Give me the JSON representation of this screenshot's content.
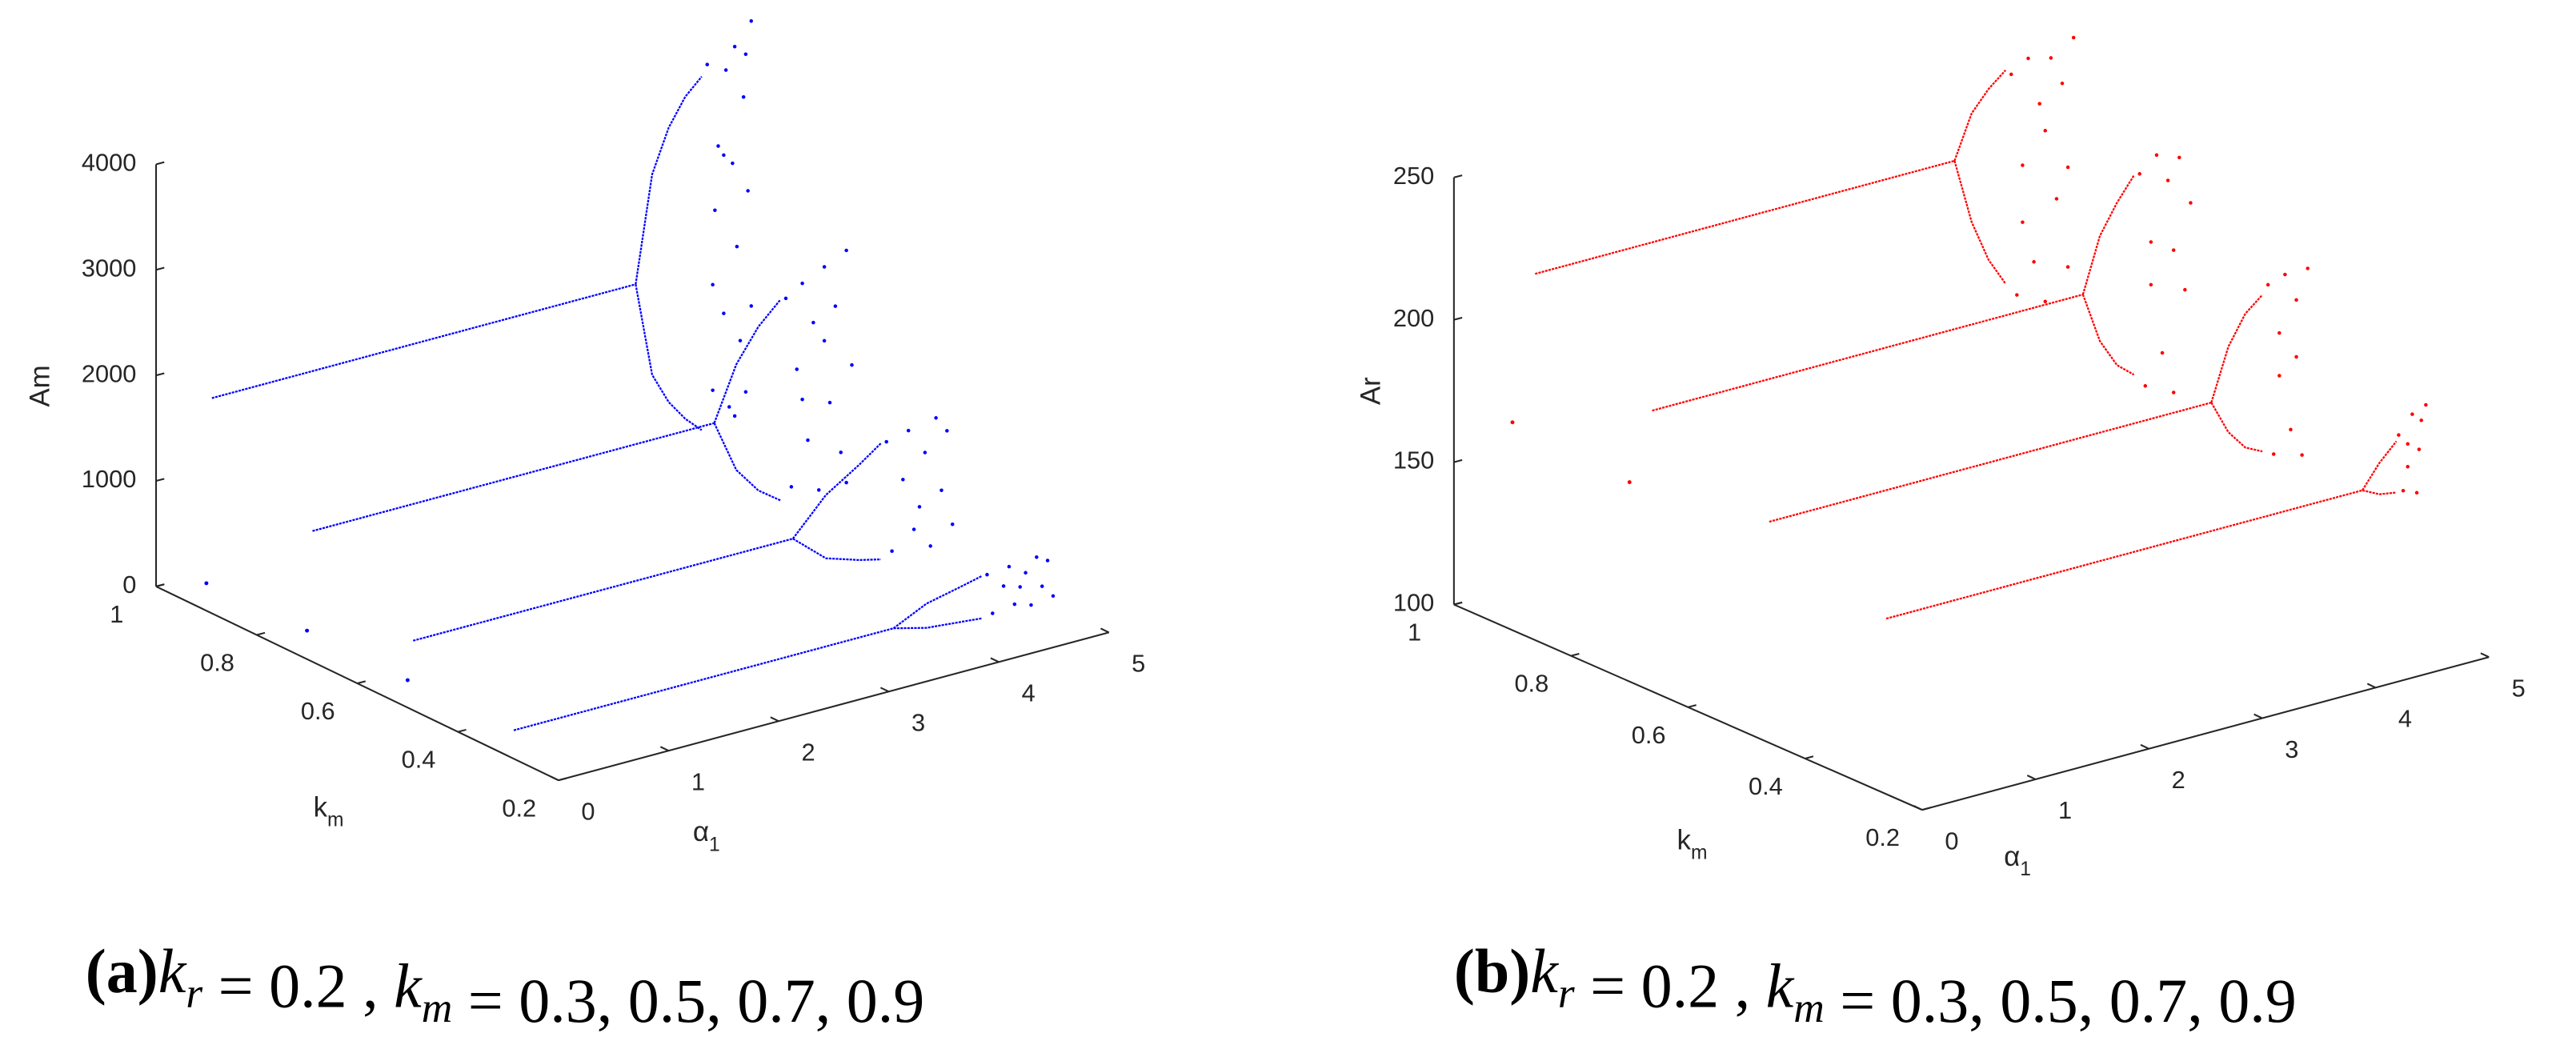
{
  "chart_data": [
    {
      "type": "scatter",
      "zlabel": "Am",
      "ylabel": {
        "text": "k",
        "sub": "m"
      },
      "xlabel": {
        "text": "α",
        "sub": "1"
      },
      "xlim": [
        0,
        5
      ],
      "xticks": [
        0,
        1,
        2,
        3,
        4,
        5
      ],
      "ylim": [
        0.2,
        1
      ],
      "yticks": [
        0.2,
        0.4,
        0.6,
        0.8,
        1
      ],
      "zlim": [
        0,
        4000
      ],
      "zticks": [
        0,
        1000,
        2000,
        3000,
        4000
      ],
      "caption": {
        "label": "(a)",
        "parts": [
          {
            "text": "k",
            "sub": "r"
          },
          {
            "text": " = 0.2 , "
          },
          {
            "text": "k",
            "sub": "m"
          },
          {
            "text": " = 0.3, 0.5, 0.7, 0.9"
          }
        ]
      },
      "series": [
        {
          "km": 0.9,
          "color": "#0000ff",
          "branches": [
            {
              "x": [
                0
              ],
              "values": [
                260
              ]
            },
            {
              "x": [
                0.05,
                3.9
              ],
              "values": [
                2000,
                2000
              ]
            },
            {
              "x": [
                3.9,
                4.05,
                4.2,
                4.35,
                4.5
              ],
              "values": [
                2000,
                3000,
                3400,
                3650,
                3800
              ]
            },
            {
              "x": [
                3.9,
                4.05,
                4.2,
                4.35,
                4.5
              ],
              "values": [
                2000,
                1100,
                800,
                600,
                450
              ]
            }
          ],
          "chaos": {
            "x": [
              4.55,
              4.6,
              4.62,
              4.65,
              4.7,
              4.72,
              4.75,
              4.78,
              4.8,
              4.82,
              4.85,
              4.88,
              4.9,
              4.92,
              4.95,
              4.6,
              4.7,
              4.8,
              4.9,
              4.95
            ],
            "values": [
              3900,
              800,
              2500,
              3100,
              1500,
              3800,
              600,
              2900,
              4000,
              2100,
              1200,
              3500,
              700,
              2600,
              4200,
              1800,
              3000,
              500,
              3900,
              1500
            ]
          }
        },
        {
          "km": 0.7,
          "color": "#0000ff",
          "branches": [
            {
              "x": [
                0
              ],
              "values": [
                270
              ]
            },
            {
              "x": [
                0.05,
                3.7
              ],
              "values": [
                1200,
                1200
              ]
            },
            {
              "x": [
                3.7,
                3.9,
                4.1,
                4.3
              ],
              "values": [
                1200,
                1700,
                2000,
                2200
              ]
            },
            {
              "x": [
                3.7,
                3.9,
                4.1,
                4.3
              ],
              "values": [
                1200,
                700,
                450,
                300
              ]
            }
          ],
          "chaos": {
            "x": [
              4.35,
              4.4,
              4.45,
              4.5,
              4.55,
              4.6,
              4.65,
              4.7,
              4.75,
              4.8,
              4.85,
              4.9,
              4.95,
              4.5,
              4.7,
              4.9
            ],
            "values": [
              2200,
              400,
              1500,
              2300,
              800,
              1900,
              300,
              2400,
              1100,
              2000,
              600,
              2500,
              1400,
              1200,
              1700,
              300
            ]
          }
        },
        {
          "km": 0.5,
          "color": "#0000ff",
          "branches": [
            {
              "x": [
                0
              ],
              "values": [
                260
              ]
            },
            {
              "x": [
                0.05,
                3.5
              ],
              "values": [
                620,
                620
              ]
            },
            {
              "x": [
                3.5,
                3.8,
                4.1,
                4.3
              ],
              "values": [
                620,
                950,
                1150,
                1300
              ]
            },
            {
              "x": [
                3.5,
                3.8,
                4.1,
                4.3
              ],
              "values": [
                620,
                350,
                250,
                200
              ]
            }
          ],
          "chaos": {
            "x": [
              4.35,
              4.4,
              4.5,
              4.55,
              4.6,
              4.7,
              4.75,
              4.8,
              4.85,
              4.9,
              4.95,
              4.65
            ],
            "values": [
              1300,
              250,
              900,
              1350,
              400,
              1100,
              200,
              1400,
              700,
              1250,
              350,
              600
            ]
          }
        },
        {
          "km": 0.3,
          "color": "#0000ff",
          "branches": [
            {
              "x": [
                0.05,
                3.5
              ],
              "values": [
                230,
                230
              ]
            },
            {
              "x": [
                3.5,
                3.8,
                4.1,
                4.3
              ],
              "values": [
                230,
                380,
                450,
                500
              ]
            },
            {
              "x": [
                3.5,
                3.8,
                4.1,
                4.3
              ],
              "values": [
                230,
                150,
                120,
                100
              ]
            }
          ],
          "chaos": {
            "x": [
              4.35,
              4.4,
              4.5,
              4.55,
              4.6,
              4.7,
              4.75,
              4.8,
              4.85,
              4.9,
              4.95,
              4.65
            ],
            "values": [
              500,
              120,
              350,
              520,
              150,
              420,
              100,
              540,
              250,
              480,
              130,
              300
            ]
          }
        }
      ]
    },
    {
      "type": "scatter",
      "zlabel": "Ar",
      "ylabel": {
        "text": "k",
        "sub": "m"
      },
      "xlabel": {
        "text": "α",
        "sub": "1"
      },
      "xlim": [
        0,
        5
      ],
      "xticks": [
        0,
        1,
        2,
        3,
        4,
        5
      ],
      "ylim": [
        0.2,
        1
      ],
      "yticks": [
        0.2,
        0.4,
        0.6,
        0.8,
        1
      ],
      "zlim": [
        100,
        250
      ],
      "zticks": [
        100,
        150,
        200,
        250
      ],
      "caption": {
        "label": "(b)",
        "parts": [
          {
            "text": "k",
            "sub": "r"
          },
          {
            "text": " = 0.2 , "
          },
          {
            "text": "k",
            "sub": "m"
          },
          {
            "text": " = 0.3, 0.5, 0.7, 0.9"
          }
        ]
      },
      "series": [
        {
          "km": 0.9,
          "color": "#ff0000",
          "branches": [
            {
              "x": [
                0
              ],
              "values": [
                173
              ]
            },
            {
              "x": [
                0.2,
                3.9
              ],
              "values": [
                223,
                223
              ]
            },
            {
              "x": [
                3.9,
                4.05,
                4.2,
                4.35
              ],
              "values": [
                223,
                238,
                245,
                250
              ]
            },
            {
              "x": [
                3.9,
                4.05,
                4.2,
                4.35
              ],
              "values": [
                223,
                200,
                185,
                175
              ]
            }
          ],
          "chaos": {
            "x": [
              4.4,
              4.45,
              4.5,
              4.55,
              4.6,
              4.65,
              4.7,
              4.75,
              4.8,
              4.85,
              4.9,
              4.95,
              4.5,
              4.7,
              4.9
            ],
            "values": [
              248,
              170,
              215,
              252,
              180,
              235,
              165,
              250,
              200,
              240,
              175,
              255,
              195,
              225,
              210
            ]
          }
        },
        {
          "km": 0.7,
          "color": "#ff0000",
          "branches": [
            {
              "x": [
                0
              ],
              "values": [
                170
              ]
            },
            {
              "x": [
                0.2,
                4.0
              ],
              "values": [
                193,
                193
              ]
            },
            {
              "x": [
                4.0,
                4.15,
                4.3,
                4.45
              ],
              "values": [
                193,
                212,
                222,
                230
              ]
            },
            {
              "x": [
                4.0,
                4.15,
                4.3,
                4.45
              ],
              "values": [
                193,
                175,
                165,
                160
              ]
            }
          ],
          "chaos": {
            "x": [
              4.5,
              4.55,
              4.6,
              4.65,
              4.7,
              4.75,
              4.8,
              4.85,
              4.9,
              4.95,
              4.6,
              4.8
            ],
            "values": [
              230,
              155,
              205,
              235,
              165,
              225,
              150,
              232,
              185,
              215,
              190,
              200
            ]
          }
        },
        {
          "km": 0.5,
          "color": "#ff0000",
          "branches": [
            {
              "x": [
                0.2,
                4.1
              ],
              "values": [
                172,
                172
              ]
            },
            {
              "x": [
                4.1,
                4.25,
                4.4,
                4.55
              ],
              "values": [
                172,
                190,
                200,
                205
              ]
            },
            {
              "x": [
                4.1,
                4.25,
                4.4,
                4.55
              ],
              "values": [
                172,
                160,
                153,
                150
              ]
            }
          ],
          "chaos": {
            "x": [
              4.6,
              4.65,
              4.7,
              4.75,
              4.8,
              4.85,
              4.9,
              4.95,
              4.7,
              4.85
            ],
            "values": [
              208,
              148,
              190,
              210,
              155,
              200,
              145,
              210,
              175,
              180
            ]
          }
        },
        {
          "km": 0.3,
          "color": "#ff0000",
          "branches": [
            {
              "x": [
                0.2,
                4.4
              ],
              "values": [
                156,
                156
              ]
            },
            {
              "x": [
                4.4,
                4.55,
                4.7
              ],
              "values": [
                156,
                164,
                170
              ]
            },
            {
              "x": [
                4.4,
                4.55,
                4.7
              ],
              "values": [
                156,
                153,
                152
              ]
            }
          ],
          "chaos": {
            "x": [
              4.72,
              4.76,
              4.8,
              4.84,
              4.88,
              4.92,
              4.96,
              4.8,
              4.9
            ],
            "values": [
              172,
              152,
              168,
              178,
              150,
              175,
              180,
              160,
              165
            ]
          }
        }
      ]
    }
  ]
}
